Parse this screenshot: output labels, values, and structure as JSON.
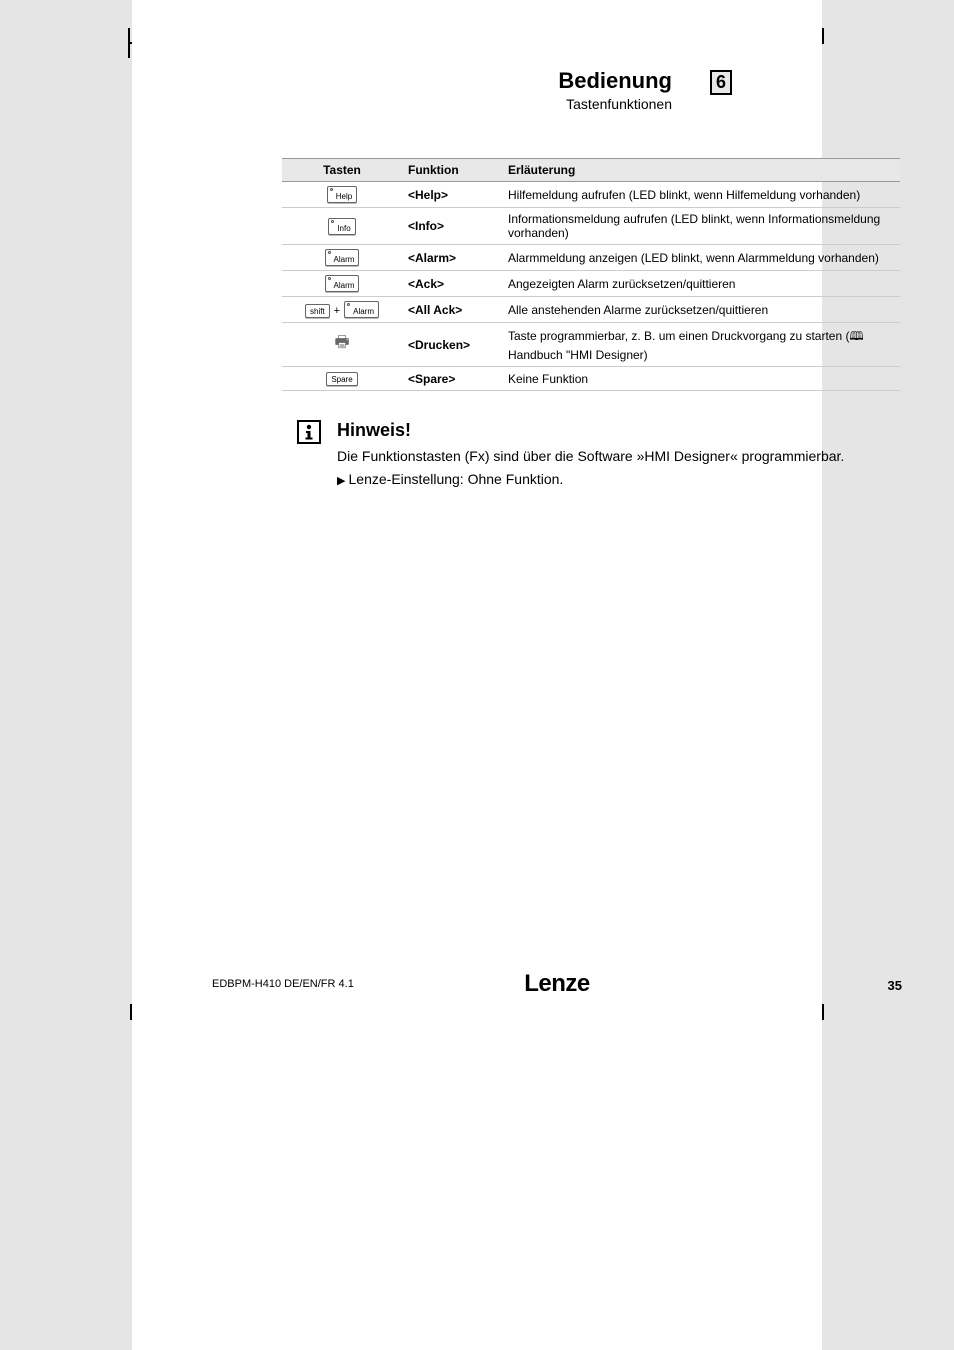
{
  "header": {
    "title": "Bedienung",
    "subtitle": "Tastenfunktionen",
    "chapter": "6"
  },
  "table": {
    "columns": [
      "Tasten",
      "Funktion",
      "Erläuterung"
    ],
    "rows": [
      {
        "key_labels": [
          "Help"
        ],
        "key_led": [
          true
        ],
        "combo": false,
        "fn": "<Help>",
        "desc": "Hilfemeldung aufrufen (LED blinkt, wenn Hilfemeldung vorhanden)"
      },
      {
        "key_labels": [
          "Info"
        ],
        "key_led": [
          true
        ],
        "combo": false,
        "fn": "<Info>",
        "desc": "Informationsmeldung aufrufen (LED blinkt, wenn Informationsmeldung vorhanden)"
      },
      {
        "key_labels": [
          "Alarm"
        ],
        "key_led": [
          true
        ],
        "combo": false,
        "fn": "<Alarm>",
        "desc": "Alarmmeldung anzeigen (LED blinkt, wenn Alarmmeldung vorhanden)"
      },
      {
        "key_labels": [
          "Alarm"
        ],
        "key_led": [
          true
        ],
        "combo": false,
        "fn": "<Ack>",
        "desc": "Angezeigten Alarm zurücksetzen/quittieren"
      },
      {
        "key_labels": [
          "shift",
          "Alarm"
        ],
        "key_led": [
          false,
          true
        ],
        "combo": true,
        "fn": "<All Ack>",
        "desc": "Alle anstehenden Alarme zurücksetzen/quittieren"
      },
      {
        "key_labels": [
          "__printer__"
        ],
        "key_led": [
          false
        ],
        "combo": false,
        "fn": "<Drucken>",
        "desc": "Taste programmierbar, z. B. um einen Druckvorgang zu starten (🕮 Handbuch \"HMI Designer)"
      },
      {
        "key_labels": [
          "Spare"
        ],
        "key_led": [
          false
        ],
        "combo": false,
        "fn": "<Spare>",
        "desc": "Keine Funktion"
      }
    ]
  },
  "note": {
    "title": "Hinweis!",
    "body": "Die Funktionstasten (Fx) sind über die Software »HMI Designer« programmierbar.",
    "bullet": "Lenze-Einstellung: Ohne Funktion."
  },
  "footer": {
    "doc": "EDBPM-H410  DE/EN/FR  4.1",
    "logo": "Lenze",
    "page": "35"
  }
}
